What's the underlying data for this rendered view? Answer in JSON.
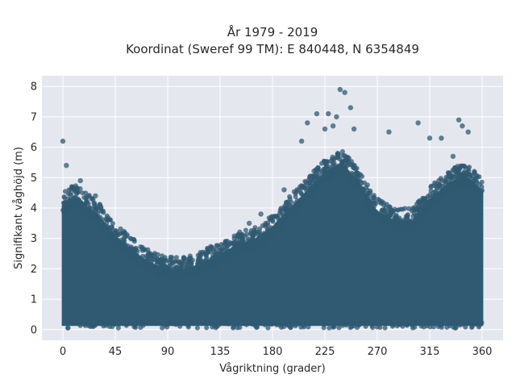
{
  "chart_data": {
    "type": "scatter",
    "title": [
      "År 1979 - 2019",
      "Koordinat (Sweref 99 TM): E 840448, N 6354849"
    ],
    "xlabel": "Vågriktning (grader)",
    "ylabel": "Signifikant våghöjd (m)",
    "xlim": [
      -18,
      378
    ],
    "ylim": [
      -0.35,
      8.35
    ],
    "xticks": [
      0,
      45,
      90,
      135,
      180,
      225,
      270,
      315,
      360
    ],
    "yticks": [
      0,
      1,
      2,
      3,
      4,
      5,
      6,
      7,
      8
    ],
    "grid": true,
    "marker_color": "#2f5a72",
    "background_color": "#e5e7ef",
    "envelope_max_height": [
      [
        0,
        4.3
      ],
      [
        10,
        4.6
      ],
      [
        20,
        4.3
      ],
      [
        30,
        4.0
      ],
      [
        45,
        3.3
      ],
      [
        60,
        2.8
      ],
      [
        75,
        2.4
      ],
      [
        90,
        2.2
      ],
      [
        105,
        2.2
      ],
      [
        120,
        2.4
      ],
      [
        135,
        2.7
      ],
      [
        150,
        3.0
      ],
      [
        165,
        3.2
      ],
      [
        180,
        3.6
      ],
      [
        195,
        4.2
      ],
      [
        210,
        4.8
      ],
      [
        225,
        5.4
      ],
      [
        240,
        5.7
      ],
      [
        255,
        5.0
      ],
      [
        270,
        4.1
      ],
      [
        285,
        3.8
      ],
      [
        300,
        3.8
      ],
      [
        315,
        4.5
      ],
      [
        330,
        5.0
      ],
      [
        345,
        5.3
      ],
      [
        360,
        4.8
      ]
    ],
    "outliers": [
      [
        0,
        6.2
      ],
      [
        3,
        5.4
      ],
      [
        15,
        4.9
      ],
      [
        28,
        4.4
      ],
      [
        140,
        2.8
      ],
      [
        160,
        3.5
      ],
      [
        170,
        3.8
      ],
      [
        190,
        4.6
      ],
      [
        205,
        6.2
      ],
      [
        210,
        6.8
      ],
      [
        218,
        7.1
      ],
      [
        225,
        6.6
      ],
      [
        228,
        7.1
      ],
      [
        232,
        6.7
      ],
      [
        235,
        7.0
      ],
      [
        238,
        7.9
      ],
      [
        242,
        7.8
      ],
      [
        247,
        7.3
      ],
      [
        250,
        6.6
      ],
      [
        280,
        6.5
      ],
      [
        305,
        6.8
      ],
      [
        315,
        6.3
      ],
      [
        325,
        6.3
      ],
      [
        340,
        6.9
      ],
      [
        343,
        6.7
      ],
      [
        348,
        6.5
      ],
      [
        335,
        5.7
      ]
    ]
  }
}
